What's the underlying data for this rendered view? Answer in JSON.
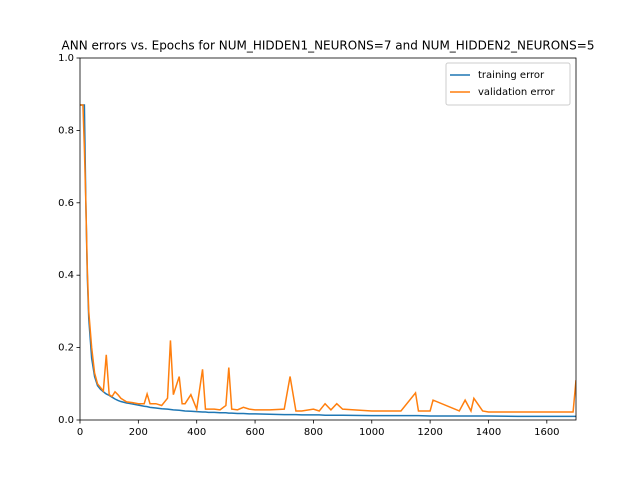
{
  "chart_data": {
    "type": "line",
    "title": "ANN errors vs. Epochs for NUM_HIDDEN1_NEURONS=7 and NUM_HIDDEN2_NEURONS=5",
    "x": [
      0,
      10,
      15,
      20,
      25,
      30,
      40,
      50,
      60,
      70,
      80,
      90,
      100,
      110,
      120,
      130,
      140,
      150,
      160,
      180,
      200,
      220,
      230,
      240,
      260,
      280,
      300,
      310,
      320,
      340,
      350,
      360,
      380,
      400,
      420,
      430,
      440,
      460,
      480,
      500,
      510,
      520,
      540,
      560,
      580,
      600,
      650,
      700,
      720,
      740,
      760,
      800,
      820,
      840,
      860,
      880,
      900,
      1000,
      1100,
      1150,
      1160,
      1200,
      1210,
      1300,
      1320,
      1340,
      1350,
      1380,
      1400,
      1500,
      1600,
      1690,
      1700
    ],
    "series": [
      {
        "name": "training error",
        "color": "#1f77b4",
        "values": [
          0.87,
          0.87,
          0.87,
          0.6,
          0.4,
          0.28,
          0.17,
          0.12,
          0.095,
          0.085,
          0.078,
          0.072,
          0.068,
          0.063,
          0.058,
          0.054,
          0.051,
          0.049,
          0.047,
          0.044,
          0.041,
          0.038,
          0.037,
          0.035,
          0.033,
          0.031,
          0.03,
          0.029,
          0.028,
          0.027,
          0.026,
          0.025,
          0.024,
          0.023,
          0.022,
          0.022,
          0.021,
          0.021,
          0.02,
          0.02,
          0.019,
          0.019,
          0.018,
          0.018,
          0.017,
          0.017,
          0.016,
          0.015,
          0.015,
          0.015,
          0.014,
          0.014,
          0.014,
          0.013,
          0.013,
          0.013,
          0.013,
          0.012,
          0.012,
          0.012,
          0.012,
          0.011,
          0.011,
          0.011,
          0.011,
          0.011,
          0.011,
          0.011,
          0.011,
          0.01,
          0.01,
          0.01,
          0.01
        ]
      },
      {
        "name": "validation error",
        "color": "#ff7f0e",
        "values": [
          0.87,
          0.87,
          0.75,
          0.6,
          0.42,
          0.3,
          0.2,
          0.13,
          0.1,
          0.09,
          0.08,
          0.18,
          0.07,
          0.065,
          0.078,
          0.07,
          0.06,
          0.055,
          0.05,
          0.048,
          0.045,
          0.045,
          0.072,
          0.045,
          0.045,
          0.04,
          0.06,
          0.22,
          0.07,
          0.12,
          0.045,
          0.045,
          0.07,
          0.03,
          0.14,
          0.03,
          0.03,
          0.03,
          0.028,
          0.04,
          0.145,
          0.03,
          0.028,
          0.035,
          0.03,
          0.028,
          0.028,
          0.03,
          0.12,
          0.025,
          0.025,
          0.03,
          0.025,
          0.045,
          0.028,
          0.045,
          0.03,
          0.025,
          0.025,
          0.075,
          0.025,
          0.025,
          0.055,
          0.025,
          0.055,
          0.025,
          0.06,
          0.025,
          0.022,
          0.022,
          0.022,
          0.022,
          0.11
        ]
      }
    ],
    "xlim": [
      0,
      1700
    ],
    "ylim": [
      0,
      1
    ],
    "xticks": [
      0,
      200,
      400,
      600,
      800,
      1000,
      1200,
      1400,
      1600
    ],
    "yticks": [
      {
        "value": 0,
        "label": "0.0"
      },
      {
        "value": 0.2,
        "label": "0.2"
      },
      {
        "value": 0.4,
        "label": "0.4"
      },
      {
        "value": 0.6,
        "label": "0.6"
      },
      {
        "value": 0.8,
        "label": "0.8"
      },
      {
        "value": 1,
        "label": "1.0"
      }
    ],
    "legend": "upper right"
  }
}
